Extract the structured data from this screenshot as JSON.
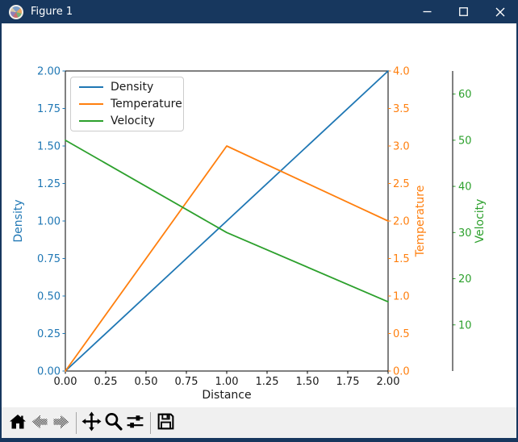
{
  "window": {
    "title": "Figure 1"
  },
  "colors": {
    "titlebar": "#17375e",
    "canvas_bg": "#ffffff",
    "toolbar_bg": "#f0f0f0",
    "density": "#1f77b4",
    "temperature": "#ff7f0e",
    "velocity": "#2ca02c"
  },
  "chart_data": {
    "type": "line",
    "xlabel": "Distance",
    "xlim": [
      0,
      2
    ],
    "x_ticks": [
      "0.00",
      "0.25",
      "0.50",
      "0.75",
      "1.00",
      "1.25",
      "1.50",
      "1.75",
      "2.00"
    ],
    "grid": false,
    "axes": [
      {
        "label": "Density",
        "side": "left",
        "color": "#1f77b4",
        "lim": [
          0,
          2
        ],
        "ticks": [
          "0.00",
          "0.25",
          "0.50",
          "0.75",
          "1.00",
          "1.25",
          "1.50",
          "1.75",
          "2.00"
        ]
      },
      {
        "label": "Temperature",
        "side": "right",
        "color": "#ff7f0e",
        "lim": [
          0,
          4
        ],
        "ticks": [
          "0.0",
          "0.5",
          "1.0",
          "1.5",
          "2.0",
          "2.5",
          "3.0",
          "3.5",
          "4.0"
        ]
      },
      {
        "label": "Velocity",
        "side": "right-offset",
        "color": "#2ca02c",
        "lim": [
          0,
          65
        ],
        "ticks": [
          "10",
          "20",
          "30",
          "40",
          "50",
          "60"
        ]
      }
    ],
    "series": [
      {
        "name": "Density",
        "color": "#1f77b4",
        "axis": 0,
        "x": [
          0,
          1,
          2
        ],
        "y": [
          0,
          1,
          2
        ]
      },
      {
        "name": "Temperature",
        "color": "#ff7f0e",
        "axis": 1,
        "x": [
          0,
          1,
          2
        ],
        "y": [
          0,
          3,
          2
        ]
      },
      {
        "name": "Velocity",
        "color": "#2ca02c",
        "axis": 2,
        "x": [
          0,
          1,
          2
        ],
        "y": [
          50,
          30,
          15
        ]
      }
    ],
    "legend": {
      "position": "upper left",
      "entries": [
        "Density",
        "Temperature",
        "Velocity"
      ]
    }
  },
  "toolbar": {
    "icons": [
      "home",
      "back",
      "forward",
      "pan",
      "zoom-to-rect",
      "configure-subplots",
      "save"
    ],
    "disabled": [
      "back",
      "forward"
    ]
  }
}
